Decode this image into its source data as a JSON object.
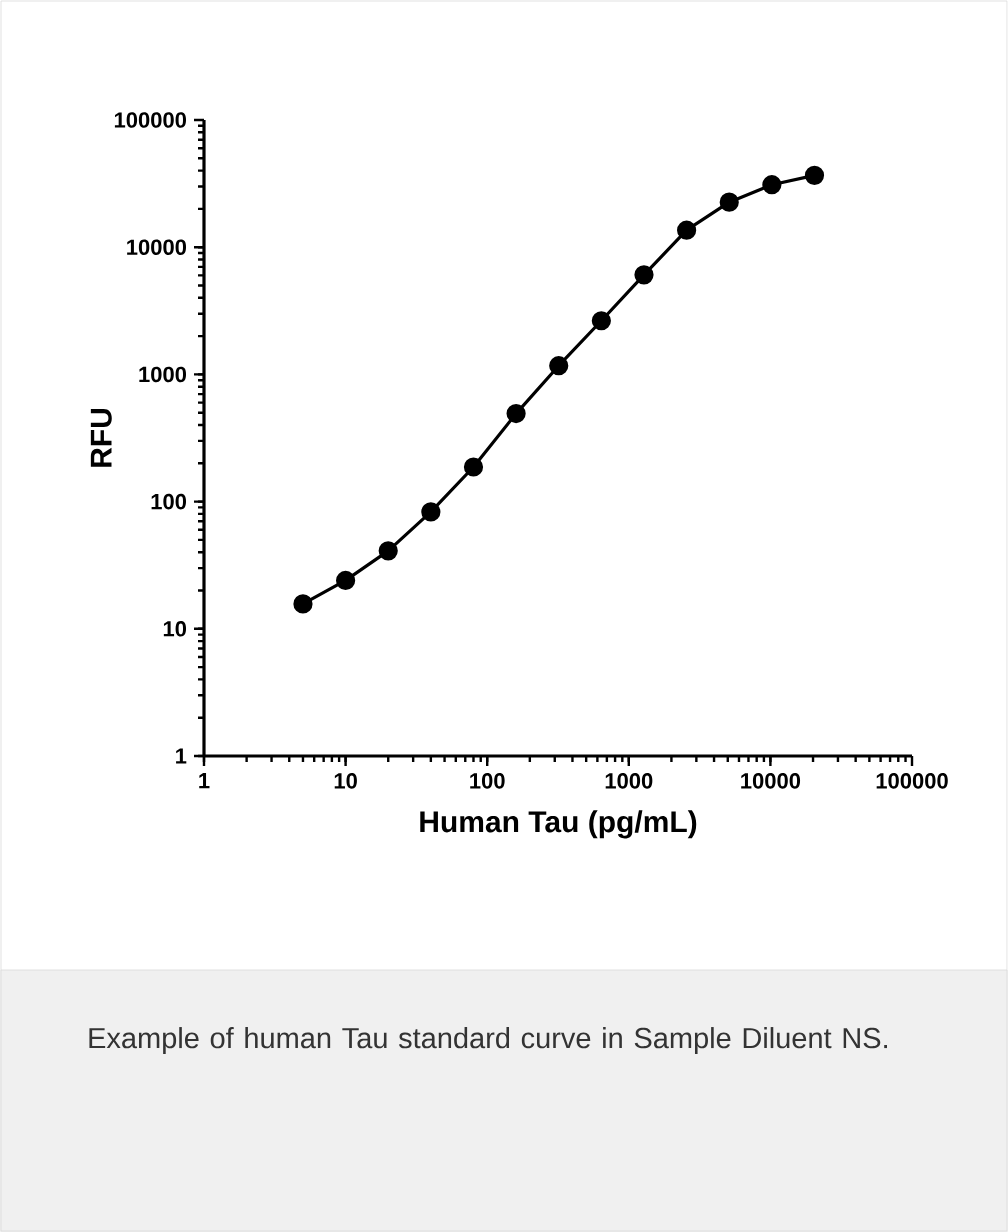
{
  "chart_data": {
    "type": "line",
    "xlabel": "Human Tau (pg/mL)",
    "ylabel": "RFU",
    "log": "xy",
    "x": [
      5,
      10,
      20,
      40,
      80,
      160,
      320,
      640,
      1280,
      2560,
      5120,
      10240,
      20480
    ],
    "series": [
      {
        "color": "#000000",
        "values": [
          15.7,
          24,
          41,
          83,
          187,
          492,
          1170,
          2640,
          6060,
          13600,
          22600,
          31000,
          36700
        ]
      }
    ],
    "xlim": [
      1,
      100000
    ],
    "ylim": [
      1,
      100000
    ],
    "xticks": [
      1,
      10,
      100,
      1000,
      10000,
      100000
    ],
    "yticks": [
      1,
      10,
      100,
      1000,
      10000,
      100000
    ],
    "marker": "circle",
    "line_style": "solid",
    "annotations": [
      "Example of human Tau standard curve in Sample Diluent NS."
    ]
  }
}
